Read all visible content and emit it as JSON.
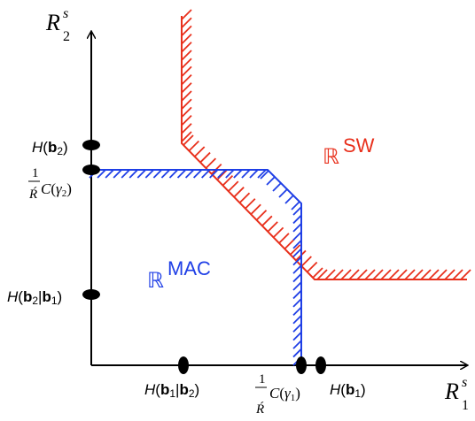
{
  "axes": {
    "y_label_base": "R",
    "y_label_sup": "s",
    "y_label_sub": "2",
    "x_label_base": "R",
    "x_label_sup": "s",
    "x_label_sub": "1"
  },
  "regions": {
    "sw": {
      "blackboard": "ℝ",
      "text": "SW",
      "color": "#e8301c"
    },
    "mac": {
      "blackboard": "ℝ",
      "text": "MAC",
      "color": "#1f3fe6"
    }
  },
  "y_ticks": {
    "hb2": {
      "H": "H",
      "open": "(",
      "bold": "b",
      "sub": "2",
      "close": ")"
    },
    "cgamma2": {
      "num": "1",
      "den": "Ŕ",
      "C": "C",
      "open": "(",
      "gamma": "γ",
      "sub": "2",
      "close": ")"
    },
    "hb2b1": {
      "H": "H",
      "open": "(",
      "bold1": "b",
      "sub1": "2",
      "bar": "|",
      "bold2": "b",
      "sub2": "1",
      "close": ")"
    }
  },
  "x_ticks": {
    "hb1b2": {
      "H": "H",
      "open": "(",
      "bold1": "b",
      "sub1": "1",
      "bar": "|",
      "bold2": "b",
      "sub2": "2",
      "close": ")"
    },
    "cgamma1": {
      "num": "1",
      "den": "Ŕ",
      "C": "C",
      "open": "(",
      "gamma": "γ",
      "sub": "1",
      "close": ")"
    },
    "hb1": {
      "H": "H",
      "open": "(",
      "bold": "b",
      "sub": "1",
      "close": ")"
    }
  }
}
